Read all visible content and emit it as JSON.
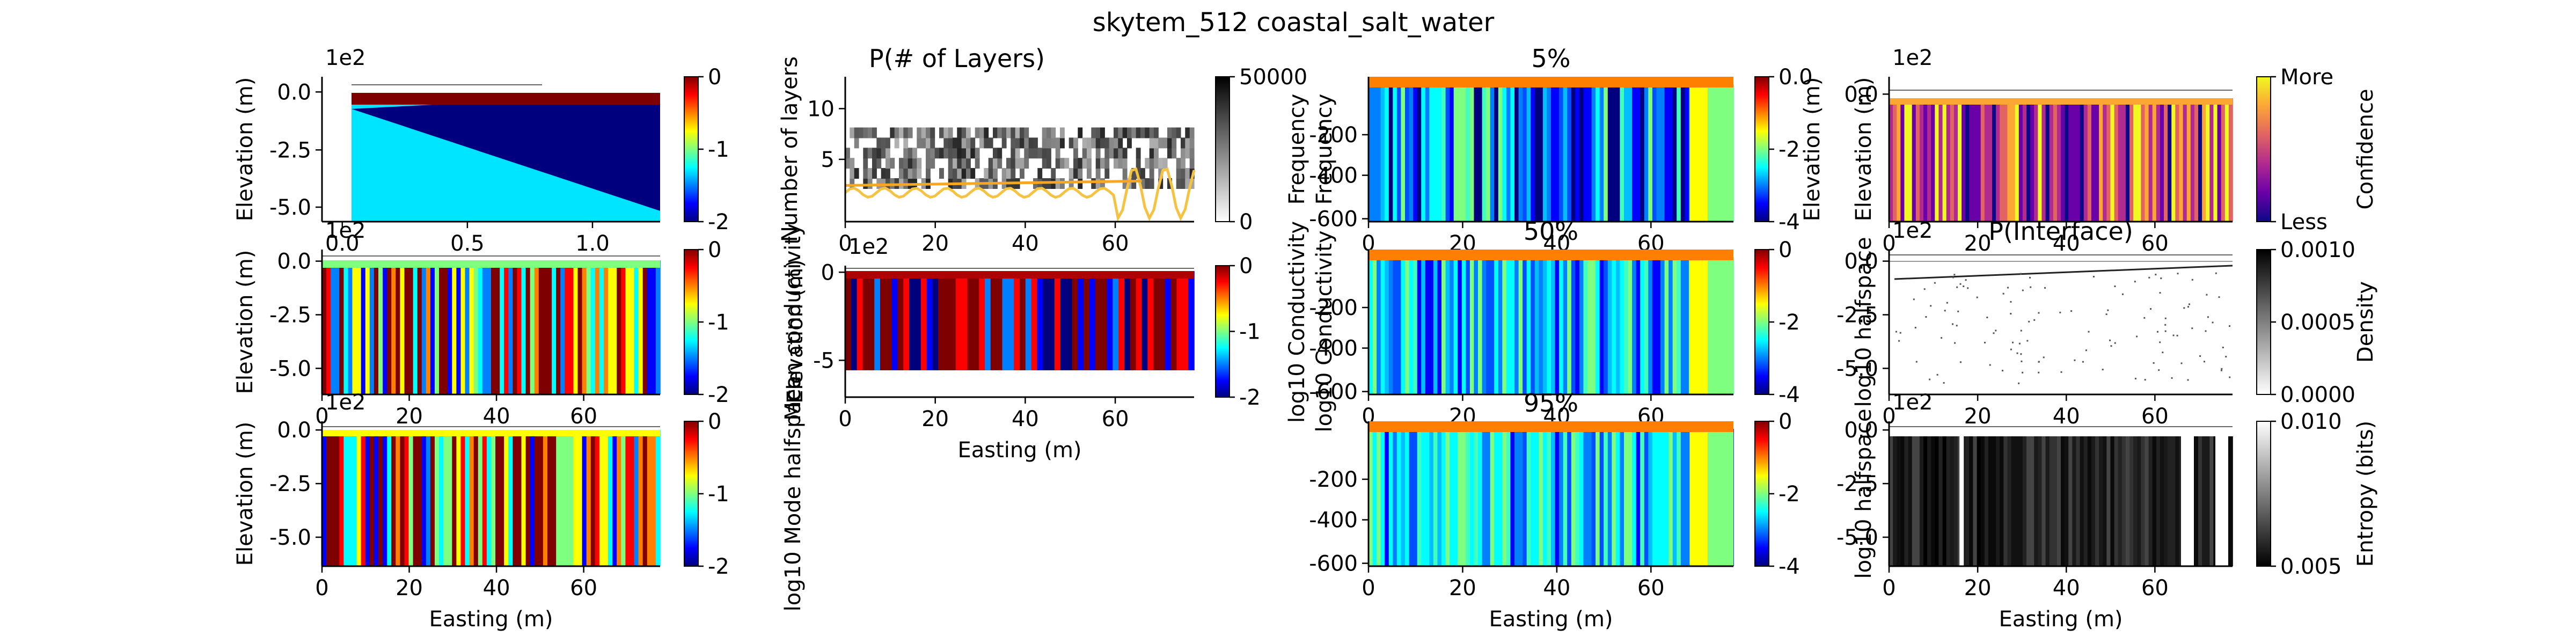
{
  "title": "skytem_512 coastal_salt_water",
  "colormaps": {
    "jet": [
      "#00007f",
      "#0000ff",
      "#007fff",
      "#00ffff",
      "#7fff7f",
      "#ffff00",
      "#ff7f00",
      "#ff0000",
      "#7f0000"
    ],
    "plasma": [
      "#0d0887",
      "#6a00a8",
      "#b12a90",
      "#e16462",
      "#fca636",
      "#f0f921"
    ],
    "gray_light": [
      "#ffffff",
      "#000000"
    ],
    "gray_dark": [
      "#000000",
      "#ffffff"
    ]
  },
  "chart_data": [
    {
      "id": "true-model",
      "type": "heatmap",
      "ylabel": "Elevation (m)",
      "x_tick_labels": [
        "0.0",
        "0.5",
        "1.0"
      ],
      "y_tick_labels": [
        "0.0",
        "-2.5",
        "-5.0"
      ],
      "y_exponent": "1e2",
      "colorbar": {
        "ticks": [
          "0",
          "-1",
          "-2"
        ],
        "label": ""
      },
      "regions": [
        "dark red top layer",
        "dark blue wedge",
        "cyan lower region"
      ]
    },
    {
      "id": "mean-model",
      "type": "heatmap",
      "ylabel": "Elevation (m)",
      "x_tick_labels": [
        "0",
        "20",
        "40",
        "60"
      ],
      "y_tick_labels": [
        "0.0",
        "-2.5",
        "-5.0"
      ],
      "y_exponent": "1e2",
      "colorbar": {
        "ticks": [
          "0",
          "-1",
          "-2"
        ],
        "label": "Mean conductivity"
      }
    },
    {
      "id": "mode-model",
      "type": "heatmap",
      "ylabel": "Elevation (m)",
      "xlabel": "Easting (m)",
      "x_tick_labels": [
        "0",
        "20",
        "40",
        "60"
      ],
      "y_tick_labels": [
        "0.0",
        "-2.5",
        "-5.0"
      ],
      "y_exponent": "1e2",
      "colorbar": {
        "ticks": [
          "0",
          "-1",
          "-2"
        ],
        "label": "log10 Mode halfspace"
      }
    },
    {
      "id": "p-layers",
      "type": "heatmap",
      "title": "P(# of Layers)",
      "ylabel": "Number of layers",
      "x_tick_labels": [
        "0",
        "20",
        "40",
        "60"
      ],
      "y_tick_labels": [
        "5",
        "10"
      ],
      "colorbar": {
        "ticks": [
          "50000",
          "0"
        ],
        "label": "Frequency"
      }
    },
    {
      "id": "p-layers-model",
      "type": "heatmap",
      "xlabel": "Easting (m)",
      "ylabel": "Elevation (m)",
      "x_tick_labels": [
        "0",
        "20",
        "40",
        "60"
      ],
      "y_tick_labels": [
        "0",
        "-5"
      ],
      "y_exponent": "1e2",
      "colorbar": {
        "ticks": [
          "0",
          "-1",
          "-2"
        ],
        "label": "log10 Conductivity"
      }
    },
    {
      "id": "perc-5",
      "type": "heatmap",
      "title": "5%",
      "ylabel": "Frequency",
      "x_tick_labels": [
        "0",
        "20",
        "40",
        "60"
      ],
      "y_tick_labels": [
        "-200",
        "-400",
        "-600"
      ],
      "colorbar": {
        "ticks": [
          "0.0",
          "-2",
          "-4"
        ],
        "label": "Elevation (m)"
      }
    },
    {
      "id": "perc-50",
      "type": "heatmap",
      "title": "50%",
      "ylabel": "log10 Conductivity",
      "x_tick_labels": [
        "0",
        "20",
        "40",
        "60"
      ],
      "y_tick_labels": [
        "-200",
        "-400",
        "-600"
      ],
      "colorbar": {
        "ticks": [
          "0",
          "-2",
          "-4"
        ],
        "label": "log10 halfspace"
      }
    },
    {
      "id": "perc-95",
      "type": "heatmap",
      "title": "95%",
      "xlabel": "Easting (m)",
      "x_tick_labels": [
        "0",
        "20",
        "40",
        "60"
      ],
      "y_tick_labels": [
        "-200",
        "-400",
        "-600"
      ],
      "colorbar": {
        "ticks": [
          "0",
          "-2",
          "-4"
        ],
        "label": "log10 halfspace"
      }
    },
    {
      "id": "confidence",
      "type": "heatmap",
      "ylabel": "Elevation (m)",
      "x_tick_labels": [
        "0",
        "20",
        "40",
        "60"
      ],
      "y_tick_labels": [
        "0.0"
      ],
      "y_exponent": "1e2",
      "colorbar": {
        "ticks": [
          "More",
          "Less"
        ],
        "label": "Confidence"
      }
    },
    {
      "id": "p-interface",
      "type": "heatmap",
      "title": "P(Interface)",
      "x_tick_labels": [
        "0",
        "20",
        "40",
        "60"
      ],
      "y_tick_labels": [
        "0.0",
        "-2.5",
        "-5.0"
      ],
      "y_exponent": "1e2",
      "colorbar": {
        "ticks": [
          "0.0010",
          "0.0005",
          "0.0000"
        ],
        "label": "Density"
      }
    },
    {
      "id": "entropy",
      "type": "heatmap",
      "xlabel": "Easting (m)",
      "x_tick_labels": [
        "0",
        "20",
        "40",
        "60"
      ],
      "y_tick_labels": [
        "0.0",
        "-2.5",
        "-5.0"
      ],
      "y_exponent": "1e2",
      "colorbar": {
        "ticks": [
          "0.010",
          "0.005"
        ],
        "label": "Entropy (bits)"
      }
    }
  ]
}
